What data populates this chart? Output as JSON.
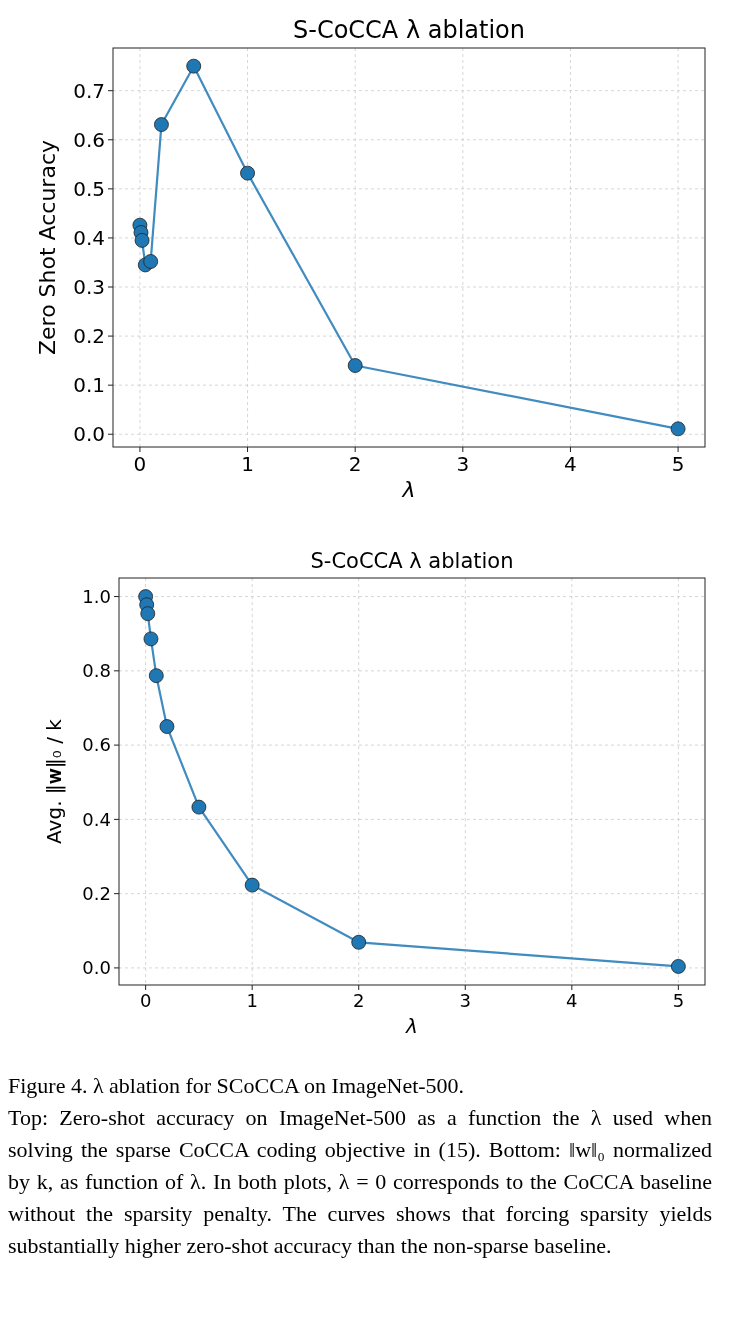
{
  "chart_data": [
    {
      "type": "line",
      "title": "S-CoCCA λ ablation",
      "xlabel": "λ",
      "ylabel": "Zero Shot Accuracy",
      "x": [
        0,
        0.01,
        0.02,
        0.05,
        0.1,
        0.2,
        0.5,
        1,
        2,
        5
      ],
      "series": [
        {
          "color": "#1f77b4",
          "values": [
            0.426,
            0.411,
            0.395,
            0.345,
            0.352,
            0.631,
            0.75,
            0.532,
            0.14,
            0.011
          ]
        }
      ],
      "xlim": [
        -0.25,
        5.25
      ],
      "xticks": [
        0,
        1,
        2,
        3,
        4,
        5
      ],
      "ylim": [
        -0.026,
        0.787
      ],
      "yticks": [
        {
          "value": 0,
          "label": "0.0"
        },
        0.1,
        0.2,
        0.3,
        0.4,
        0.5,
        0.6,
        0.7
      ],
      "grid": true,
      "marker": "circle",
      "line_style": "solid"
    },
    {
      "type": "line",
      "title": "S-CoCCA λ ablation",
      "xlabel": "λ",
      "ylabel": "Avg. ‖𝐰‖₀ / k",
      "x": [
        0,
        0.01,
        0.02,
        0.05,
        0.1,
        0.2,
        0.5,
        1,
        2,
        5
      ],
      "series": [
        {
          "color": "#1f77b4",
          "values": [
            1.0,
            0.978,
            0.954,
            0.886,
            0.787,
            0.65,
            0.433,
            0.223,
            0.069,
            0.004
          ]
        }
      ],
      "xlim": [
        -0.25,
        5.25
      ],
      "xticks": [
        0,
        1,
        2,
        3,
        4,
        5
      ],
      "ylim": [
        -0.046,
        1.05
      ],
      "yticks": [
        {
          "value": 0,
          "label": "0.0"
        },
        {
          "value": 0.2,
          "label": "0.2"
        },
        {
          "value": 0.4,
          "label": "0.4"
        },
        {
          "value": 0.6,
          "label": "0.6"
        },
        {
          "value": 0.8,
          "label": "0.8"
        },
        {
          "value": 1,
          "label": "1.0"
        }
      ],
      "grid": true,
      "marker": "circle",
      "line_style": "solid",
      "annotations": [
        "Figure 4. λ ablation for SCoCCA on ImageNet-500.",
        "Top: Zero-shot accuracy on ImageNet-500 as a function the λ used when solving the sparse CoCCA coding objective in (15). Bottom: ‖w‖₀ normalized by k, as function of λ. In both plots, λ = 0 corresponds to the CoCCA baseline without the sparsity penalty. The curves shows that forcing sparsity yields substantially higher zero-shot accuracy than the non-sparse baseline."
      ]
    }
  ]
}
